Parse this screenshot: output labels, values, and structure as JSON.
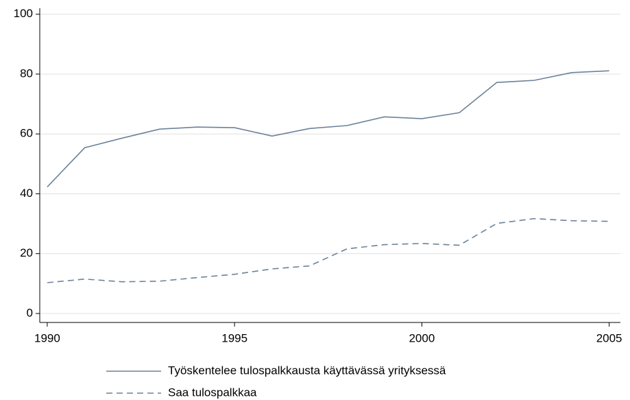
{
  "chart_data": {
    "type": "line",
    "x": [
      1990,
      1991,
      1992,
      1993,
      1994,
      1995,
      1996,
      1997,
      1998,
      1999,
      2000,
      2001,
      2002,
      2003,
      2004,
      2005
    ],
    "series": [
      {
        "name": "Työskentelee tulospalkkausta käyttävässä yrityksessä",
        "color": "#6b8299",
        "dash": "solid",
        "values": [
          42.3,
          55.4,
          58.6,
          61.6,
          62.3,
          62.1,
          59.3,
          61.8,
          62.8,
          65.7,
          65.1,
          67.1,
          77.2,
          77.9,
          80.5,
          81.1
        ]
      },
      {
        "name": "Saa tulospalkkaa",
        "color": "#6b8299",
        "dash": "dashed",
        "values": [
          10.3,
          11.5,
          10.6,
          10.8,
          12.0,
          13.1,
          14.9,
          15.9,
          21.6,
          23.0,
          23.4,
          22.8,
          30.1,
          31.7,
          31.0,
          30.8
        ]
      }
    ],
    "xlim": [
      1989.8,
      2005.3
    ],
    "xticks": [
      1990,
      1995,
      2000,
      2005
    ],
    "ylim": [
      -3,
      102
    ],
    "yticks": [
      0,
      20,
      40,
      60,
      80,
      100
    ],
    "grid": true,
    "legend": "bottom"
  }
}
